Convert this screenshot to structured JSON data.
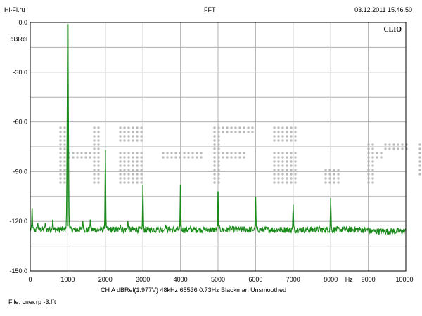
{
  "header": {
    "left": "Hi-Fi.ru",
    "title": "FFT",
    "datetime": "03.12.2011 15.46.50"
  },
  "footer": {
    "info": "CH A   dBRel(1.977V)   48kHz   65536   0.73Hz   Blackman   Unsmoothed",
    "file": "File: спектр -3.fft"
  },
  "branding": {
    "clio": "CLIO",
    "watermark": "Hi-Fi.ru"
  },
  "colors": {
    "trace": "#1a8a1a",
    "grid": "#b0b0b0",
    "watermark": "#bdbdbd"
  },
  "chart_data": {
    "type": "line",
    "title": "FFT",
    "xlabel": "Hz",
    "ylabel": "dBRel",
    "xlim": [
      0,
      10000
    ],
    "ylim": [
      -150,
      0
    ],
    "x_ticks": [
      "0",
      "1000",
      "2000",
      "3000",
      "4000",
      "5000",
      "6000",
      "7000",
      "8000",
      "Hz",
      "9000",
      "10000"
    ],
    "y_ticks": [
      "0.0",
      "dBRel",
      "-30.0",
      "-60.0",
      "-90.0",
      "-120.0",
      "-150.0"
    ],
    "grid": true,
    "noise_floor_db": -125,
    "peaks": [
      {
        "x": 50,
        "y": -112
      },
      {
        "x": 200,
        "y": -121
      },
      {
        "x": 400,
        "y": -121
      },
      {
        "x": 600,
        "y": -119
      },
      {
        "x": 1000,
        "y": -1
      },
      {
        "x": 1400,
        "y": -120
      },
      {
        "x": 1600,
        "y": -119
      },
      {
        "x": 2000,
        "y": -77
      },
      {
        "x": 2400,
        "y": -122
      },
      {
        "x": 2600,
        "y": -120
      },
      {
        "x": 3000,
        "y": -98
      },
      {
        "x": 3400,
        "y": -123
      },
      {
        "x": 3600,
        "y": -122
      },
      {
        "x": 4000,
        "y": -98
      },
      {
        "x": 5000,
        "y": -102
      },
      {
        "x": 6000,
        "y": -105
      },
      {
        "x": 7000,
        "y": -110
      },
      {
        "x": 8000,
        "y": -106
      }
    ]
  }
}
